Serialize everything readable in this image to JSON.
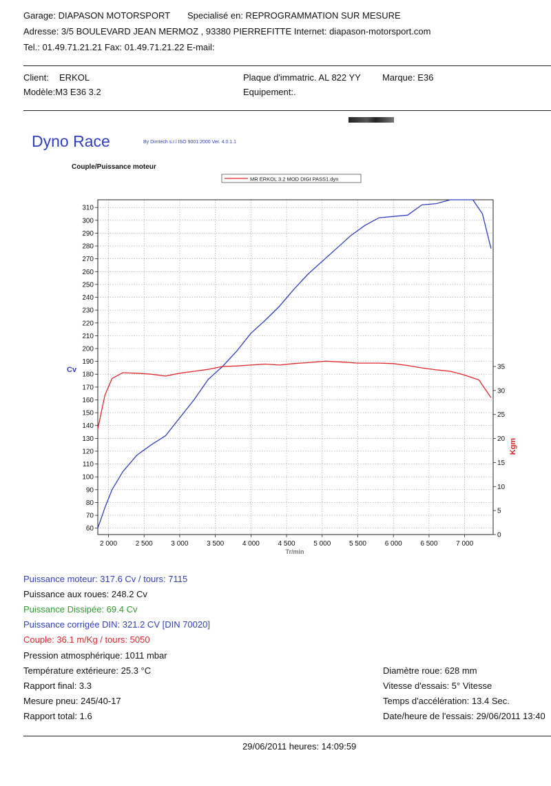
{
  "header": {
    "line1_garage": "Garage: DIAPASON MOTORSPORT",
    "line1_special": "Specialisé en: REPROGRAMMATION SUR MESURE",
    "line2": "Adresse: 3/5 BOULEVARD JEAN MERMOZ , 93380 PIERREFITTE Internet: diapason-motorsport.com",
    "line3": "Tel.: 01.49.71.21.21 Fax: 01.49.71.21.22 E-mail:"
  },
  "client": {
    "client_label": "Client:",
    "client_value": "ERKOL",
    "model": "Modèle:M3 E36 3.2",
    "plate": "Plaque d'immatric. AL 822 YY",
    "brand": "Marque: E36",
    "equipment": "Equipement:."
  },
  "branding": {
    "title": "Dyno Race",
    "by": "By Dimtech s.r.l  ISO 9001:2000  Ver. 4.0.1.1"
  },
  "results": {
    "puissance_moteur": "Puissance moteur:  317.6 Cv / tours: 7115",
    "puissance_roues": "Puissance aux roues:  248.2 Cv",
    "puissance_dissipee": "Puissance Dissipée:  69.4 Cv",
    "puissance_din": "Puissance corrigée DIN:  321.2 CV  [DIN 70020]",
    "couple": "Couple:  36.1  m/Kg / tours: 5050",
    "pression": "Pression atmosphérique:  1011 mbar",
    "temperature": "Température extérieure:  25.3 °C",
    "rapport_final": "Rapport final: 3.3",
    "mesure_pneu": "Mesure pneu:  245/40-17",
    "rapport_total": "Rapport total: 1.6",
    "diametre": "Diamètre roue:  628 mm",
    "vitesse": "Vitesse d'essais:  5° Vitesse",
    "temps": "Temps d'accélération: 13.4 Sec.",
    "date_essais": "Date/heure de l'essais: 29/06/2011 13:40"
  },
  "footer": {
    "datetime": "29/06/2011  heures:  14:09:59"
  },
  "colors": {
    "power": "#2f3fbf",
    "torque": "#e0262a",
    "dissipated": "#2e9a2e"
  },
  "chart_data": {
    "type": "line",
    "title": "Couple/Puissance moteur",
    "legend": [
      "MR ERKOL 3.2 MOD DIGI PASS1.dyn"
    ],
    "legend_position": "top",
    "xlabel": "Tr/min",
    "ylabel_left": "Cv",
    "ylabel_right": "Kgm",
    "xlim": [
      1850,
      7400
    ],
    "ylim_left": [
      55,
      316
    ],
    "ylim_right": [
      0,
      35
    ],
    "grid": true,
    "x_ticks": [
      2000,
      2500,
      3000,
      3500,
      4000,
      4500,
      5000,
      5500,
      6000,
      6500,
      7000
    ],
    "x_tick_labels": [
      "2 000",
      "2 500",
      "3 000",
      "3 500",
      "4 000",
      "4 500",
      "5 000",
      "5 500",
      "6 000",
      "6 500",
      "7 000"
    ],
    "y_ticks_left": [
      60,
      70,
      80,
      90,
      100,
      110,
      120,
      130,
      140,
      150,
      160,
      170,
      180,
      190,
      200,
      210,
      220,
      230,
      240,
      250,
      260,
      270,
      280,
      290,
      300,
      310
    ],
    "y_ticks_right": [
      0,
      5,
      10,
      15,
      20,
      25,
      30,
      35
    ],
    "series": [
      {
        "name": "Cv",
        "axis": "left",
        "color": "#2f3fbf",
        "x": [
          1850,
          1950,
          2050,
          2200,
          2400,
          2600,
          2800,
          3000,
          3200,
          3400,
          3600,
          3800,
          4000,
          4200,
          4400,
          4600,
          4800,
          5000,
          5200,
          5400,
          5600,
          5800,
          6000,
          6200,
          6400,
          6600,
          6800,
          7000,
          7115,
          7250,
          7370
        ],
        "y": [
          60,
          76,
          90,
          104,
          117,
          125,
          132,
          146,
          160,
          176,
          186,
          198,
          212,
          222,
          233,
          246,
          258,
          268,
          278,
          288,
          296,
          302,
          303,
          304,
          312,
          313,
          317,
          317,
          317.6,
          305,
          278
        ]
      },
      {
        "name": "Kgm",
        "axis": "right",
        "color": "#e0262a",
        "x": [
          1850,
          1950,
          2050,
          2200,
          2400,
          2600,
          2800,
          3000,
          3200,
          3400,
          3600,
          3800,
          4000,
          4200,
          4400,
          4600,
          4800,
          5050,
          5300,
          5500,
          5800,
          6000,
          6200,
          6400,
          6600,
          6800,
          7000,
          7200,
          7370
        ],
        "y": [
          22,
          29,
          32.5,
          33.7,
          33.6,
          33.4,
          33.0,
          33.6,
          34.0,
          34.4,
          35.0,
          35.1,
          35.3,
          35.5,
          35.3,
          35.6,
          35.8,
          36.1,
          35.9,
          35.7,
          35.7,
          35.6,
          35.2,
          34.7,
          34.3,
          34.0,
          33.2,
          32.2,
          28.5
        ]
      }
    ]
  }
}
